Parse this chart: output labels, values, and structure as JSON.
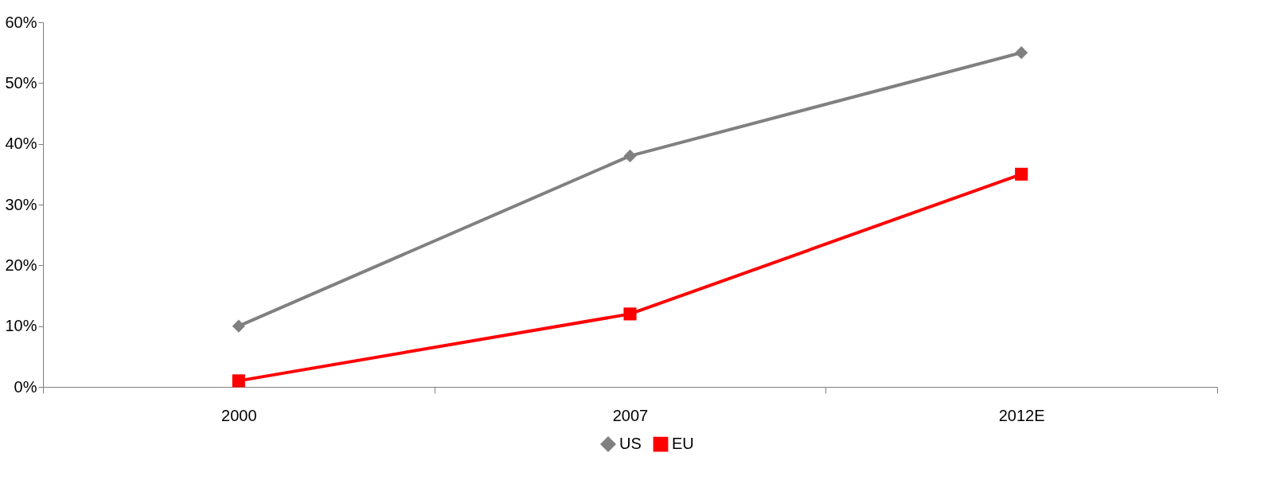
{
  "chart_data": {
    "type": "line",
    "categories": [
      "2000",
      "2007",
      "2012E"
    ],
    "series": [
      {
        "name": "US",
        "color": "#808080",
        "values": [
          10,
          38,
          55
        ],
        "marker": "diamond"
      },
      {
        "name": "EU",
        "color": "#ff0000",
        "values": [
          1,
          12,
          35
        ],
        "marker": "square"
      }
    ],
    "ylim": [
      0,
      60
    ],
    "yticks": [
      {
        "value": 0,
        "label": "0%"
      },
      {
        "value": 10,
        "label": "10%"
      },
      {
        "value": 20,
        "label": "20%"
      },
      {
        "value": 30,
        "label": "30%"
      },
      {
        "value": 40,
        "label": "40%"
      },
      {
        "value": 50,
        "label": "50%"
      },
      {
        "value": 60,
        "label": "60%"
      }
    ],
    "grid": false,
    "legend": "bottom",
    "line_style": "solid"
  }
}
